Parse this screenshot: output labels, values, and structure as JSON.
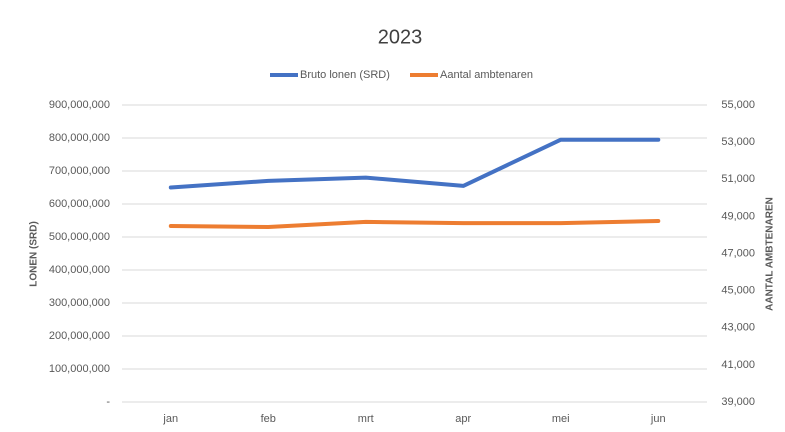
{
  "chart_data": {
    "type": "line",
    "title": "2023",
    "categories": [
      "jan",
      "feb",
      "mrt",
      "apr",
      "mei",
      "jun"
    ],
    "series": [
      {
        "name": "Bruto lonen (SRD)",
        "color": "#4472c4",
        "values": [
          650000000,
          670000000,
          680000000,
          655000000,
          795000000,
          795000000
        ]
      },
      {
        "name": "Aantal ambtenaren",
        "color": "#ed7d31",
        "axis": "y2",
        "values": [
          48480,
          48430,
          48700,
          48640,
          48640,
          48750
        ]
      }
    ],
    "y_label": "LONEN (SRD)",
    "y2_label": "AANTAL AMBTENAREN",
    "ylim": [
      0,
      900000000
    ],
    "yticks": [
      {
        "value": 0,
        "label": "-"
      },
      {
        "value": 100000000,
        "label": "100,000,000"
      },
      {
        "value": 200000000,
        "label": "200,000,000"
      },
      {
        "value": 300000000,
        "label": "300,000,000"
      },
      {
        "value": 400000000,
        "label": "400,000,000"
      },
      {
        "value": 500000000,
        "label": "500,000,000"
      },
      {
        "value": 600000000,
        "label": "600,000,000"
      },
      {
        "value": 700000000,
        "label": "700,000,000"
      },
      {
        "value": 800000000,
        "label": "800,000,000"
      },
      {
        "value": 900000000,
        "label": "900,000,000"
      }
    ],
    "y2lim": [
      39000,
      55000
    ],
    "y2ticks": [
      {
        "value": 39000,
        "label": "39,000"
      },
      {
        "value": 41000,
        "label": "41,000"
      },
      {
        "value": 43000,
        "label": "43,000"
      },
      {
        "value": 45000,
        "label": "45,000"
      },
      {
        "value": 47000,
        "label": "47,000"
      },
      {
        "value": 49000,
        "label": "49,000"
      },
      {
        "value": 51000,
        "label": "51,000"
      },
      {
        "value": 53000,
        "label": "53,000"
      },
      {
        "value": 55000,
        "label": "55,000"
      }
    ],
    "grid": true,
    "legend": "top"
  }
}
